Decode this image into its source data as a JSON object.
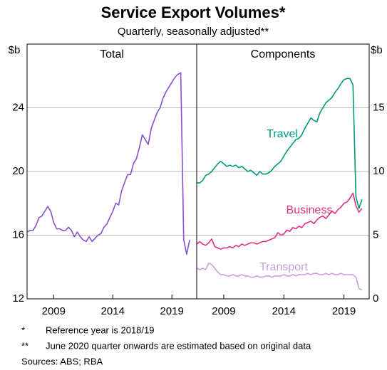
{
  "title": "Service Export Volumes*",
  "subtitle": "Quarterly, seasonally adjusted**",
  "chart_data": [
    {
      "type": "line",
      "title": "Total",
      "y_label": "$b",
      "color": "#8a4fd0",
      "x": [
        2006.75,
        2007,
        2007.25,
        2007.5,
        2007.75,
        2008,
        2008.25,
        2008.5,
        2008.75,
        2009,
        2009.25,
        2009.5,
        2009.75,
        2010,
        2010.25,
        2010.5,
        2010.75,
        2011,
        2011.25,
        2011.5,
        2011.75,
        2012,
        2012.25,
        2012.5,
        2012.75,
        2013,
        2013.25,
        2013.5,
        2013.75,
        2014,
        2014.25,
        2014.5,
        2014.75,
        2015,
        2015.25,
        2015.5,
        2015.75,
        2016,
        2016.25,
        2016.5,
        2016.75,
        2017,
        2017.25,
        2017.5,
        2017.75,
        2018,
        2018.25,
        2018.5,
        2018.75,
        2019,
        2019.25,
        2019.5,
        2019.75,
        2020,
        2020.25,
        2020.5
      ],
      "values": [
        16.2,
        16.3,
        16.3,
        16.6,
        17.1,
        17.2,
        17.5,
        17.8,
        17.5,
        16.8,
        16.4,
        16.4,
        16.3,
        16.3,
        16.5,
        16.3,
        15.9,
        16.2,
        15.9,
        15.7,
        15.6,
        15.9,
        15.6,
        15.8,
        16.0,
        16.1,
        16.5,
        16.7,
        17.1,
        17.5,
        18.0,
        17.9,
        18.8,
        19.3,
        19.8,
        19.8,
        20.5,
        20.8,
        21.5,
        22.3,
        22.0,
        21.7,
        22.7,
        23.2,
        23.7,
        24.0,
        24.6,
        25.0,
        25.3,
        25.6,
        25.9,
        26.1,
        26.2,
        15.7,
        14.8,
        15.7
      ],
      "xlim": [
        2006.75,
        2021.1
      ],
      "xticks": [
        2009,
        2014,
        2019
      ],
      "ylim": [
        12,
        28
      ],
      "yticks": [
        12,
        16,
        20,
        24
      ],
      "grid": true,
      "y_side": "left"
    },
    {
      "type": "line",
      "title": "Components",
      "y_label": "$b",
      "x": [
        2006.75,
        2007,
        2007.25,
        2007.5,
        2007.75,
        2008,
        2008.25,
        2008.5,
        2008.75,
        2009,
        2009.25,
        2009.5,
        2009.75,
        2010,
        2010.25,
        2010.5,
        2010.75,
        2011,
        2011.25,
        2011.5,
        2011.75,
        2012,
        2012.25,
        2012.5,
        2012.75,
        2013,
        2013.25,
        2013.5,
        2013.75,
        2014,
        2014.25,
        2014.5,
        2014.75,
        2015,
        2015.25,
        2015.5,
        2015.75,
        2016,
        2016.25,
        2016.5,
        2016.75,
        2017,
        2017.25,
        2017.5,
        2017.75,
        2018,
        2018.25,
        2018.5,
        2018.75,
        2019,
        2019.25,
        2019.5,
        2019.75,
        2020,
        2020.25,
        2020.5
      ],
      "series": [
        {
          "name": "Travel",
          "color": "#00997a",
          "values": [
            9.1,
            9.1,
            9.3,
            9.7,
            9.8,
            10.0,
            10.3,
            10.6,
            10.8,
            10.6,
            10.4,
            10.5,
            10.4,
            10.5,
            10.3,
            10.4,
            10.2,
            10.0,
            10.1,
            9.9,
            9.7,
            10.0,
            9.8,
            9.8,
            9.9,
            10.1,
            10.4,
            10.6,
            10.8,
            11.2,
            11.6,
            11.9,
            12.2,
            12.5,
            12.6,
            12.9,
            13.4,
            13.8,
            14.2,
            14.0,
            13.9,
            14.6,
            15.0,
            15.4,
            15.6,
            15.8,
            16.2,
            16.5,
            16.9,
            17.2,
            17.3,
            17.3,
            16.8,
            8.0,
            7.1,
            7.8
          ]
        },
        {
          "name": "Business",
          "color": "#e0307f",
          "values": [
            4.3,
            4.5,
            4.3,
            4.2,
            4.4,
            4.7,
            4.1,
            4.0,
            3.9,
            4.0,
            4.0,
            4.1,
            4.0,
            4.2,
            4.1,
            4.3,
            4.2,
            4.3,
            4.4,
            4.4,
            4.3,
            4.4,
            4.5,
            4.5,
            4.6,
            4.7,
            4.8,
            5.2,
            5.0,
            5.1,
            5.4,
            5.3,
            5.6,
            5.5,
            5.7,
            5.6,
            5.9,
            6.0,
            6.1,
            5.9,
            6.2,
            6.4,
            6.5,
            6.3,
            6.6,
            6.9,
            6.7,
            7.0,
            7.2,
            7.5,
            7.6,
            7.9,
            8.3,
            7.3,
            6.8,
            7.1
          ]
        },
        {
          "name": "Transport",
          "color": "#c9a0dc",
          "values": [
            2.4,
            2.3,
            2.4,
            2.3,
            2.8,
            2.7,
            2.4,
            2.1,
            1.9,
            1.9,
            1.8,
            1.8,
            1.9,
            1.8,
            1.8,
            1.9,
            1.8,
            1.8,
            1.7,
            1.7,
            1.8,
            1.7,
            1.7,
            1.8,
            1.8,
            1.7,
            1.8,
            1.8,
            1.8,
            1.9,
            1.8,
            1.8,
            1.9,
            1.8,
            1.9,
            1.9,
            1.9,
            2.0,
            1.9,
            2.0,
            2.0,
            1.9,
            1.9,
            2.0,
            1.9,
            2.0,
            1.9,
            1.9,
            2.0,
            1.9,
            1.9,
            1.9,
            1.9,
            1.7,
            0.8,
            0.7
          ]
        }
      ],
      "xlim": [
        2006.75,
        2021.1
      ],
      "xticks": [
        2009,
        2014,
        2019
      ],
      "ylim": [
        0,
        20
      ],
      "yticks": [
        0,
        5,
        10,
        15
      ],
      "grid": true,
      "y_side": "right"
    }
  ],
  "footnotes": [
    {
      "mark": "*",
      "text": "Reference year is 2018/19"
    },
    {
      "mark": "**",
      "text": "June 2020 quarter onwards are estimated based on original data"
    }
  ],
  "sources": "Sources: ABS; RBA"
}
